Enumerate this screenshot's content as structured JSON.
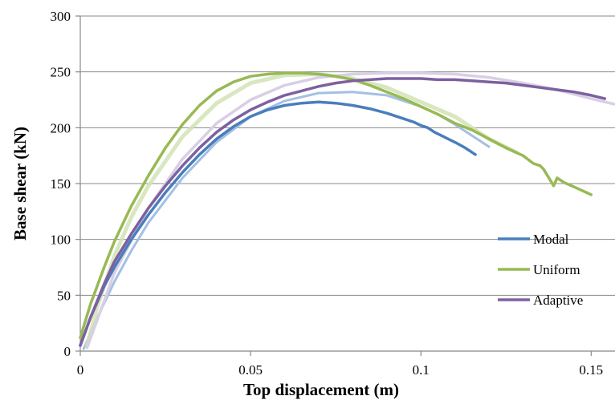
{
  "chart_data": {
    "type": "line",
    "title": "",
    "xlabel": "Top displacement (m)",
    "ylabel": "Base shear (kN)",
    "xlim": [
      0,
      0.157
    ],
    "ylim": [
      0,
      300
    ],
    "x_ticks": [
      {
        "value": 0,
        "label": "0"
      },
      {
        "value": 0.05,
        "label": "0.05"
      },
      {
        "value": 0.1,
        "label": "0.1"
      },
      {
        "value": 0.15,
        "label": "0.15"
      }
    ],
    "y_ticks": [
      {
        "value": 0,
        "label": "0"
      },
      {
        "value": 50,
        "label": "50"
      },
      {
        "value": 100,
        "label": "100"
      },
      {
        "value": 150,
        "label": "150"
      },
      {
        "value": 200,
        "label": "200"
      },
      {
        "value": 250,
        "label": "250"
      },
      {
        "value": 300,
        "label": "300"
      }
    ],
    "grid": "horizontal",
    "legend_position": "bottom-right",
    "series": [
      {
        "name": "",
        "color": "#a3c0e4",
        "width": 3,
        "opacity": 1,
        "x": [
          0.001,
          0.005,
          0.01,
          0.015,
          0.02,
          0.03,
          0.04,
          0.05,
          0.06,
          0.07,
          0.08,
          0.09,
          0.1,
          0.105,
          0.11,
          0.115,
          0.12
        ],
        "y": [
          2,
          30,
          62,
          90,
          115,
          155,
          187,
          210,
          224,
          231,
          232,
          229,
          219,
          212,
          203,
          193,
          183
        ]
      },
      {
        "name": "",
        "color": "#d2e3b5",
        "width": 5,
        "opacity": 0.85,
        "x": [
          0.002,
          0.005,
          0.01,
          0.015,
          0.02,
          0.03,
          0.04,
          0.05,
          0.06,
          0.07,
          0.08,
          0.09,
          0.1,
          0.11,
          0.12,
          0.128
        ],
        "y": [
          5,
          40,
          85,
          120,
          148,
          192,
          222,
          240,
          247,
          248,
          244,
          236,
          223,
          210,
          190,
          178
        ]
      },
      {
        "name": "",
        "color": "#d9cfe4",
        "width": 3.5,
        "opacity": 1,
        "x": [
          0.002,
          0.01,
          0.02,
          0.03,
          0.04,
          0.05,
          0.06,
          0.07,
          0.08,
          0.09,
          0.1,
          0.11,
          0.12,
          0.13,
          0.14,
          0.15,
          0.157
        ],
        "y": [
          3,
          70,
          128,
          172,
          204,
          225,
          238,
          245,
          248,
          249,
          249,
          248,
          245,
          240,
          234,
          226,
          221
        ]
      },
      {
        "name": "Modal",
        "color": "#4a7ebb",
        "width": 3.5,
        "opacity": 1,
        "x": [
          0,
          0.003,
          0.007,
          0.01,
          0.015,
          0.02,
          0.025,
          0.03,
          0.035,
          0.04,
          0.045,
          0.05,
          0.055,
          0.06,
          0.065,
          0.07,
          0.075,
          0.08,
          0.085,
          0.09,
          0.095,
          0.098,
          0.1,
          0.102,
          0.104,
          0.106,
          0.108,
          0.11,
          0.113,
          0.116
        ],
        "y": [
          5,
          30,
          58,
          75,
          100,
          122,
          142,
          160,
          176,
          190,
          201,
          210,
          216,
          220,
          222,
          223,
          222,
          220,
          217,
          213,
          208,
          205,
          202,
          200,
          196,
          193,
          190,
          187,
          182,
          176
        ]
      },
      {
        "name": "Uniform",
        "color": "#98b954",
        "width": 3.5,
        "opacity": 1,
        "x": [
          0,
          0.003,
          0.007,
          0.01,
          0.015,
          0.02,
          0.025,
          0.03,
          0.035,
          0.04,
          0.045,
          0.05,
          0.055,
          0.06,
          0.065,
          0.07,
          0.075,
          0.08,
          0.085,
          0.09,
          0.095,
          0.1,
          0.105,
          0.11,
          0.115,
          0.12,
          0.125,
          0.13,
          0.133,
          0.135,
          0.136,
          0.137,
          0.138,
          0.139,
          0.14,
          0.142,
          0.145,
          0.15
        ],
        "y": [
          12,
          42,
          75,
          98,
          130,
          157,
          182,
          203,
          220,
          233,
          241,
          246,
          248,
          249,
          249,
          248,
          246,
          243,
          238,
          232,
          226,
          219,
          212,
          204,
          198,
          190,
          182,
          175,
          168,
          166,
          163,
          158,
          153,
          148,
          155,
          151,
          147,
          140
        ]
      },
      {
        "name": "Adaptive",
        "color": "#7d60a0",
        "width": 3.5,
        "opacity": 1,
        "x": [
          0,
          0.003,
          0.007,
          0.01,
          0.015,
          0.02,
          0.025,
          0.03,
          0.035,
          0.04,
          0.045,
          0.05,
          0.055,
          0.06,
          0.065,
          0.07,
          0.075,
          0.08,
          0.085,
          0.09,
          0.095,
          0.1,
          0.105,
          0.11,
          0.115,
          0.12,
          0.125,
          0.13,
          0.135,
          0.14,
          0.145,
          0.15,
          0.154
        ],
        "y": [
          5,
          30,
          60,
          80,
          105,
          128,
          148,
          166,
          182,
          196,
          207,
          216,
          223,
          229,
          233,
          237,
          240,
          242,
          243,
          244,
          244,
          244,
          243,
          243,
          242,
          241,
          240,
          238,
          236,
          234,
          232,
          229,
          226
        ]
      }
    ]
  }
}
